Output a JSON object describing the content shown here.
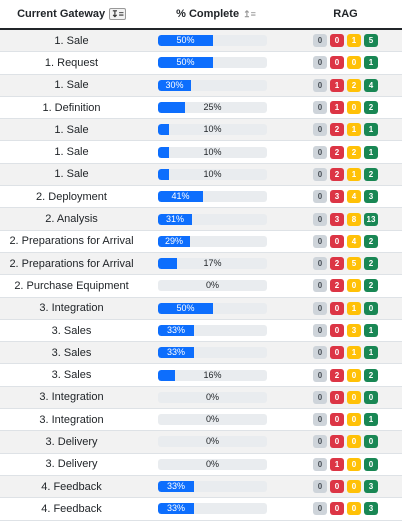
{
  "header": {
    "col_gateway": "Current Gateway",
    "col_complete": "% Complete",
    "col_rag": "RAG"
  },
  "colors": {
    "progress": "#0d6efd",
    "track": "#e9ecef",
    "gray": "#ced4da",
    "red": "#dc3545",
    "yellow": "#ffc107",
    "green": "#198754"
  },
  "rows": [
    {
      "gateway": "1. Sale",
      "percent": 50,
      "pct_label": "50%",
      "rag": [
        "0",
        "0",
        "1",
        "5"
      ]
    },
    {
      "gateway": "1. Request",
      "percent": 50,
      "pct_label": "50%",
      "rag": [
        "0",
        "0",
        "0",
        "1"
      ]
    },
    {
      "gateway": "1. Sale",
      "percent": 30,
      "pct_label": "30%",
      "rag": [
        "0",
        "1",
        "2",
        "4"
      ]
    },
    {
      "gateway": "1. Definition",
      "percent": 25,
      "pct_label": "25%",
      "rag": [
        "0",
        "1",
        "0",
        "2"
      ]
    },
    {
      "gateway": "1. Sale",
      "percent": 10,
      "pct_label": "10%",
      "rag": [
        "0",
        "2",
        "1",
        "1"
      ]
    },
    {
      "gateway": "1. Sale",
      "percent": 10,
      "pct_label": "10%",
      "rag": [
        "0",
        "2",
        "2",
        "1"
      ]
    },
    {
      "gateway": "1. Sale",
      "percent": 10,
      "pct_label": "10%",
      "rag": [
        "0",
        "2",
        "1",
        "2"
      ]
    },
    {
      "gateway": "2. Deployment",
      "percent": 41,
      "pct_label": "41%",
      "rag": [
        "0",
        "3",
        "4",
        "3"
      ]
    },
    {
      "gateway": "2. Analysis",
      "percent": 31,
      "pct_label": "31%",
      "rag": [
        "0",
        "3",
        "8",
        "13"
      ]
    },
    {
      "gateway": "2. Preparations for Arrival",
      "percent": 29,
      "pct_label": "29%",
      "rag": [
        "0",
        "0",
        "4",
        "2"
      ]
    },
    {
      "gateway": "2. Preparations for Arrival",
      "percent": 17,
      "pct_label": "17%",
      "rag": [
        "0",
        "2",
        "5",
        "2"
      ]
    },
    {
      "gateway": "2. Purchase Equipment",
      "percent": 0,
      "pct_label": "0%",
      "rag": [
        "0",
        "2",
        "0",
        "2"
      ]
    },
    {
      "gateway": "3. Integration",
      "percent": 50,
      "pct_label": "50%",
      "rag": [
        "0",
        "0",
        "1",
        "0"
      ]
    },
    {
      "gateway": "3. Sales",
      "percent": 33,
      "pct_label": "33%",
      "rag": [
        "0",
        "0",
        "3",
        "1"
      ]
    },
    {
      "gateway": "3. Sales",
      "percent": 33,
      "pct_label": "33%",
      "rag": [
        "0",
        "0",
        "1",
        "1"
      ]
    },
    {
      "gateway": "3. Sales",
      "percent": 16,
      "pct_label": "16%",
      "rag": [
        "0",
        "2",
        "0",
        "2"
      ]
    },
    {
      "gateway": "3. Integration",
      "percent": 0,
      "pct_label": "0%",
      "rag": [
        "0",
        "0",
        "0",
        "0"
      ]
    },
    {
      "gateway": "3. Integration",
      "percent": 0,
      "pct_label": "0%",
      "rag": [
        "0",
        "0",
        "0",
        "1"
      ]
    },
    {
      "gateway": "3. Delivery",
      "percent": 0,
      "pct_label": "0%",
      "rag": [
        "0",
        "0",
        "0",
        "0"
      ]
    },
    {
      "gateway": "3. Delivery",
      "percent": 0,
      "pct_label": "0%",
      "rag": [
        "0",
        "1",
        "0",
        "0"
      ]
    },
    {
      "gateway": "4. Feedback",
      "percent": 33,
      "pct_label": "33%",
      "rag": [
        "0",
        "0",
        "0",
        "3"
      ]
    },
    {
      "gateway": "4. Feedback",
      "percent": 33,
      "pct_label": "33%",
      "rag": [
        "0",
        "0",
        "0",
        "3"
      ]
    }
  ]
}
